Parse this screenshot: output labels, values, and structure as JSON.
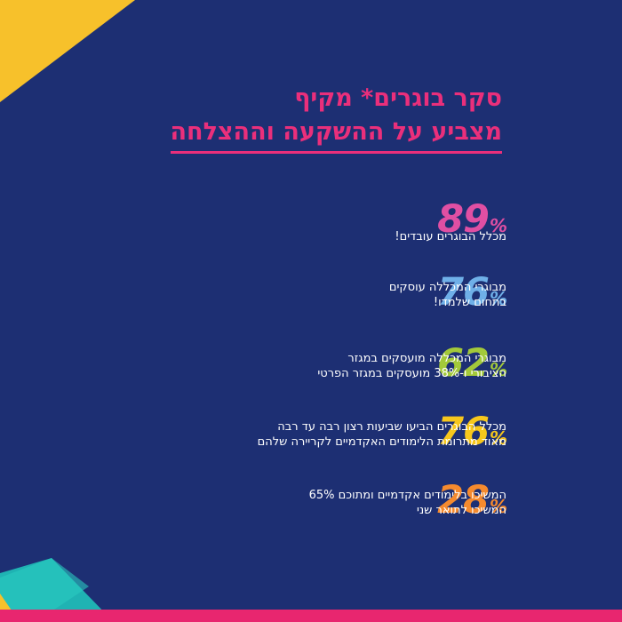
{
  "title": {
    "line1": "סקר בוגרים* מקיף",
    "line2": "מצביע על ההשקעה וההצלחה"
  },
  "stats": [
    {
      "value": "89",
      "unit": "%",
      "color": "#e04fa3",
      "line1": "מכלל הבוגרים עובדים!",
      "line2": ""
    },
    {
      "value": "76",
      "unit": "%",
      "color": "#6fb0e8",
      "line1": "מבוגרי המכללה עוסקים",
      "line2": "בתחום שלמדו!"
    },
    {
      "value": "62",
      "unit": "%",
      "color": "#a3c93a",
      "line1": "מבוגרי המכללה מועסקים במגזר",
      "line2": "הציבורי ו-38% מועסקים במגזר הפרטי"
    },
    {
      "value": "76",
      "unit": "%",
      "color": "#f7c71c",
      "line1": "מכלל הבוגרים הביעו שביעות רצון רבה עד רבה",
      "line2": "מאוד מתרומת הלימודים האקדמיים לקריירה שלהם"
    },
    {
      "value": "28",
      "unit": "%",
      "color": "#f58a2e",
      "line1": "המשיכו בלימודים אקדמיים ומתוכם 65%",
      "line2": "המשיכו לתואר שני"
    }
  ],
  "colors": {
    "background": "#1d2f73",
    "title": "#ea2f7b",
    "accent_yellow": "#f7c12b",
    "accent_teal": "#1fb3b3",
    "accent_pink": "#e8266f"
  }
}
